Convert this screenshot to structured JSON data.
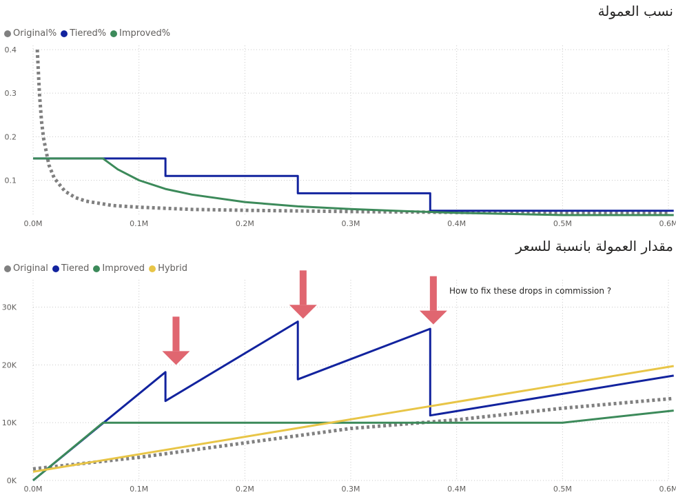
{
  "chart_data": [
    {
      "type": "line",
      "title": "نسب العمولة",
      "legend": {
        "placement": "top-left",
        "entries": [
          "Original%",
          "Tiered%",
          "Improved%"
        ]
      },
      "xlim": [
        0,
        600000
      ],
      "ylim": [
        0.02,
        0.4
      ],
      "x_ticks": [
        "0.0M",
        "0.1M",
        "0.2M",
        "0.3M",
        "0.4M",
        "0.5M",
        "0.6M"
      ],
      "y_ticks": [
        "0.1",
        "0.2",
        "0.3",
        "0.4"
      ],
      "grid": true,
      "series": [
        {
          "name": "Original%",
          "color": "#808080",
          "style": "dotted",
          "x": [
            4000,
            6000,
            8000,
            10000,
            15000,
            20000,
            30000,
            40000,
            50000,
            75000,
            100000,
            150000,
            200000,
            300000,
            400000,
            500000,
            600000
          ],
          "y": [
            0.4,
            0.3,
            0.235,
            0.195,
            0.135,
            0.105,
            0.075,
            0.06,
            0.052,
            0.042,
            0.038,
            0.033,
            0.031,
            0.028,
            0.026,
            0.025,
            0.024
          ]
        },
        {
          "name": "Tiered%",
          "color": "#12239E",
          "style": "solid",
          "x": [
            0,
            125000,
            125000,
            250000,
            250000,
            375000,
            375000,
            605000
          ],
          "y": [
            0.15,
            0.15,
            0.11,
            0.11,
            0.07,
            0.07,
            0.03,
            0.03
          ]
        },
        {
          "name": "Improved%",
          "color": "#3C8A5A",
          "style": "solid",
          "x": [
            0,
            66000,
            80000,
            100000,
            125000,
            150000,
            200000,
            250000,
            300000,
            350000,
            400000,
            500000,
            605000
          ],
          "y": [
            0.15,
            0.15,
            0.125,
            0.1,
            0.08,
            0.067,
            0.05,
            0.04,
            0.034,
            0.029,
            0.025,
            0.02,
            0.02
          ]
        }
      ]
    },
    {
      "type": "line",
      "title": "مقدار العمولة بانسبة للسعر",
      "legend": {
        "placement": "top-left",
        "entries": [
          "Original",
          "Tiered",
          "Improved",
          "Hybrid"
        ]
      },
      "xlim": [
        0,
        600000
      ],
      "ylim": [
        0,
        34000
      ],
      "x_ticks": [
        "0.0M",
        "0.1M",
        "0.2M",
        "0.3M",
        "0.4M",
        "0.5M",
        "0.6M"
      ],
      "y_ticks": [
        "0K",
        "10K",
        "20K",
        "30K"
      ],
      "grid": true,
      "annotation": "How to fix these drops in commission ?",
      "series": [
        {
          "name": "Original",
          "color": "#808080",
          "style": "dotted",
          "x": [
            0,
            100000,
            200000,
            300000,
            400000,
            500000,
            605000
          ],
          "y": [
            2000,
            4000,
            6500,
            9000,
            10500,
            12500,
            14200
          ]
        },
        {
          "name": "Tiered",
          "color": "#12239E",
          "style": "solid",
          "x": [
            0,
            125000,
            125000,
            250000,
            250000,
            375000,
            375000,
            605000
          ],
          "y": [
            0,
            18750,
            13750,
            27500,
            17500,
            26250,
            11250,
            18150
          ]
        },
        {
          "name": "Improved",
          "color": "#3C8A5A",
          "style": "solid",
          "x": [
            0,
            66000,
            500000,
            605000
          ],
          "y": [
            0,
            10000,
            10000,
            12100
          ]
        },
        {
          "name": "Hybrid",
          "color": "#E8C547",
          "style": "solid",
          "x": [
            0,
            605000
          ],
          "y": [
            1500,
            19800
          ]
        }
      ]
    }
  ],
  "colors": {
    "original": "#808080",
    "tiered": "#12239E",
    "improved": "#3C8A5A",
    "hybrid": "#E8C547",
    "arrow": "#E06670"
  },
  "arrows": [
    {
      "x": 135000,
      "y": 20000
    },
    {
      "x": 255000,
      "y": 28000
    },
    {
      "x": 378000,
      "y": 27000
    }
  ]
}
